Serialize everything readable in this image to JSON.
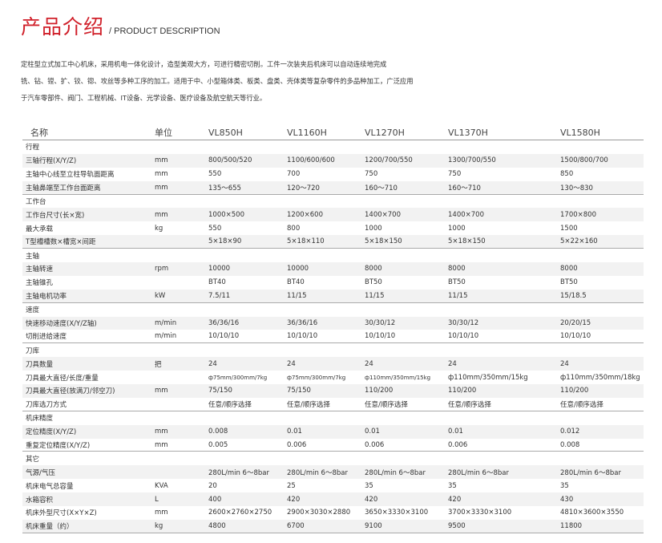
{
  "header": {
    "title_cn": "产品介绍",
    "title_en": "/ PRODUCT DESCRIPTION"
  },
  "intro": [
    "定柱型立式加工中心机床，采用机电一体化设计，造型美观大方，可进行精密切削。工件一次装夹后机床可以自动连续地完成",
    "铣、钻、镗、扩、铰、锪、攻丝等多种工序的加工。适用于中、小型箱体类、板类、盘类、壳体类等复杂零件的多品种加工，广泛应用",
    "于汽车零部件、阀门、工程机械、IT设备、光学设备、医疗设备及航空航天等行业。"
  ],
  "accent_color": "#d0202a",
  "table": {
    "columns": [
      "名称",
      "单位",
      "VL850H",
      "VL1160H",
      "VL1270H",
      "VL1370H",
      "VL1580H"
    ],
    "groups": [
      {
        "name": "行程",
        "rows": [
          [
            "三轴行程(X/Y/Z)",
            "mm",
            "800/500/520",
            "1100/600/600",
            "1200/700/550",
            "1300/700/550",
            "1500/800/700"
          ],
          [
            "主轴中心线至立柱导轨面距离",
            "mm",
            "550",
            "700",
            "750",
            "750",
            "850"
          ],
          [
            "主轴鼻端至工作台面距离",
            "mm",
            "135～655",
            "120～720",
            "160～710",
            "160～710",
            "130～830"
          ]
        ]
      },
      {
        "name": "工作台",
        "rows": [
          [
            "工作台尺寸(长×宽)",
            "mm",
            "1000×500",
            "1200×600",
            "1400×700",
            "1400×700",
            "1700×800"
          ],
          [
            "最大承载",
            "kg",
            "550",
            "800",
            "1000",
            "1000",
            "1500"
          ],
          [
            "T型槽槽数×槽宽×间距",
            "",
            "5×18×90",
            "5×18×110",
            "5×18×150",
            "5×18×150",
            "5×22×160"
          ]
        ]
      },
      {
        "name": "主轴",
        "rows": [
          [
            "主轴转速",
            "rpm",
            "10000",
            "10000",
            "8000",
            "8000",
            "8000"
          ],
          [
            "主轴锥孔",
            "",
            "BT40",
            "BT40",
            "BT50",
            "BT50",
            "BT50"
          ],
          [
            "主轴电机功率",
            "kW",
            "7.5/11",
            "11/15",
            "11/15",
            "11/15",
            "15/18.5"
          ]
        ]
      },
      {
        "name": "速度",
        "rows": [
          [
            "快速移动速度(X/Y/Z轴)",
            "m/min",
            "36/36/16",
            "36/36/16",
            "30/30/12",
            "30/30/12",
            "20/20/15"
          ],
          [
            "切削进给速度",
            "m/min",
            "10/10/10",
            "10/10/10",
            "10/10/10",
            "10/10/10",
            "10/10/10"
          ]
        ]
      },
      {
        "name": "刀库",
        "rows": [
          [
            "刀具数量",
            "把",
            "24",
            "24",
            "24",
            "24",
            "24"
          ],
          [
            "刀具最大直径/长度/重量",
            "",
            "ф75mm/300mm/7kg",
            "ф75mm/300mm/7kg",
            "ф110mm/350mm/15kg",
            "ф110mm/350mm/15kg",
            "ф110mm/350mm/18kg"
          ],
          [
            "刀具最大直径(放满刀/邻空刀)",
            "mm",
            "75/150",
            "75/150",
            "110/200",
            "110/200",
            "110/200"
          ],
          [
            "刀库选刀方式",
            "",
            "任意/顺序选择",
            "任意/顺序选择",
            "任意/顺序选择",
            "任意/顺序选择",
            "任意/顺序选择"
          ]
        ]
      },
      {
        "name": "机床精度",
        "rows": [
          [
            "定位精度(X/Y/Z)",
            "mm",
            "0.008",
            "0.01",
            "0.01",
            "0.01",
            "0.012"
          ],
          [
            "重复定位精度(X/Y/Z)",
            "mm",
            "0.005",
            "0.006",
            "0.006",
            "0.006",
            "0.008"
          ]
        ]
      },
      {
        "name": "其它",
        "rows": [
          [
            "气源/气压",
            "",
            "280L/min 6～8bar",
            "280L/min 6～8bar",
            "280L/min 6～8bar",
            "280L/min 6～8bar",
            "280L/min 6～8bar"
          ],
          [
            "机床电气总容量",
            "KVA",
            "20",
            "25",
            "35",
            "35",
            "35"
          ],
          [
            "水箱容积",
            "L",
            "400",
            "420",
            "420",
            "420",
            "430"
          ],
          [
            "机床外型尺寸(X×Y×Z)",
            "mm",
            "2600×2760×2750",
            "2900×3030×2880",
            "3650×3330×3100",
            "3700×3330×3100",
            "4810×3600×3550"
          ],
          [
            "机床重量（约）",
            "kg",
            "4800",
            "6700",
            "9100",
            "9500",
            "11800"
          ]
        ]
      }
    ]
  }
}
